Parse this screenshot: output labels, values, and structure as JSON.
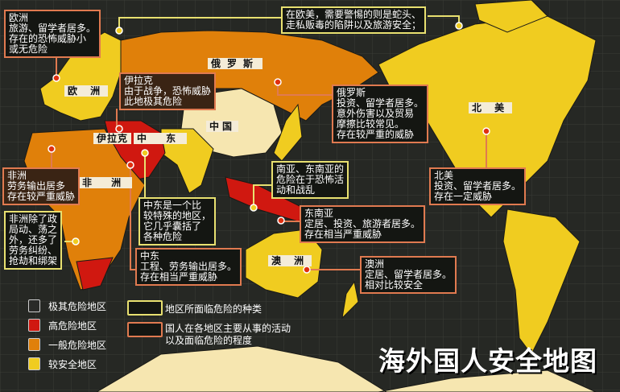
{
  "colors": {
    "extreme": "#2a2a28",
    "high": "#d01810",
    "general": "#e0800a",
    "safe": "#f0cc20",
    "china": "#f6e6b0",
    "ocean": "#262824"
  },
  "regions": {
    "europe": "欧 洲",
    "russia": "俄罗斯",
    "iraq": "伊拉克",
    "middle_east": "中 东",
    "china": "中国",
    "north_america": "北 美",
    "africa": "非 洲",
    "australia": "澳 洲"
  },
  "callouts": {
    "europe": "欧洲\n旅游、留学者居多。\n存在的恐怖威胁小\n或无危险",
    "euro_america": "在欧美，需要警惕的则是蛇头、\n走私贩毒的陷阱以及旅游安全；",
    "iraq": "伊拉克\n由于战争，恐怖威胁\n此地极其危险",
    "russia": "俄罗斯\n投资、留学者居多。\n意外伤害以及贸易\n摩擦比较常见。\n存在较严重的威胁",
    "africa": "非洲\n劳务输出居多\n存在较严重威胁",
    "africa_risk": "非洲除了政\n局动、荡之\n外，还多了\n劳务纠纷、\n抢劫和绑架",
    "middle_east_special": "中东是一个比\n较特殊的地区，\n它几乎囊括了\n各种危险",
    "middle_east": "中东\n工程、劳务输出居多。\n存在相当严重威胁",
    "south_asia": "南亚、东南亚的\n危险在于恐怖活\n动和战乱",
    "southeast_asia": "东南亚\n定居、投资、旅游者居多。\n存在相当严重威胁",
    "north_america": "北美\n投资、留学者居多。\n存在一定威胁",
    "australia": "澳洲\n定居、留学者居多。\n相对比较安全"
  },
  "legend": {
    "levels": [
      "极其危险地区",
      "高危险地区",
      "一般危险地区",
      "较安全地区"
    ],
    "box_types": [
      "地区所面临危险的种类",
      "国人在各地区主要从事的活动\n以及面临危险的程度"
    ]
  },
  "title": "海外国人安全地图"
}
